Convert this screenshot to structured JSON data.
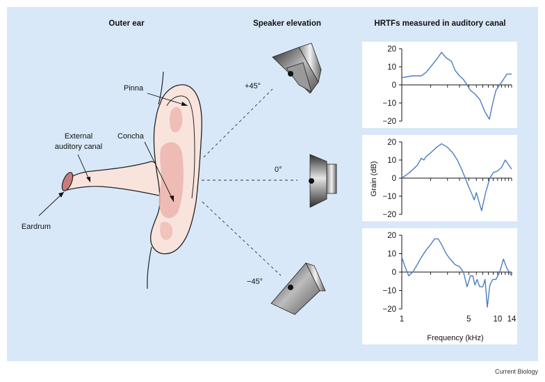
{
  "headers": {
    "outer_ear": "Outer ear",
    "speaker_elevation": "Speaker elevation",
    "hrtfs": "HRTFs measured in auditory canal"
  },
  "ear_labels": {
    "pinna": "Pinna",
    "external_canal_line1": "External",
    "external_canal_line2": "auditory canal",
    "concha": "Concha",
    "eardrum": "Eardrum"
  },
  "elevations": {
    "top": "+45°",
    "middle": "0°",
    "bottom": "−45°"
  },
  "axes": {
    "ylabel": "Grain (dB)",
    "xlabel": "Frequency (kHz)",
    "y_ticks": [
      "20",
      "10",
      "0",
      "−10",
      "−20"
    ],
    "x_ticks": [
      "1",
      "5",
      "10",
      "14"
    ]
  },
  "credit": "Current Biology",
  "colors": {
    "panel_bg": "#d8e8f8",
    "curve": "#4a7dbf",
    "ear_skin": "#f9e4dd",
    "ear_shade": "#ecb5ae"
  },
  "chart_data": [
    {
      "type": "line",
      "elevation": "+45°",
      "xscale": "log",
      "xlim": [
        1,
        14
      ],
      "ylim": [
        -20,
        20
      ],
      "ylabel": "Grain (dB)",
      "x": [
        1.0,
        1.3,
        1.6,
        1.8,
        2.0,
        2.3,
        2.6,
        2.9,
        3.3,
        3.6,
        4.0,
        4.4,
        4.8,
        5.2,
        5.8,
        6.5,
        7.4,
        8.2,
        8.9,
        9.6,
        10.5,
        11.5,
        12.5,
        14.0
      ],
      "y": [
        4,
        5,
        5,
        7,
        10,
        14,
        18,
        15,
        13,
        8,
        5,
        3,
        0,
        -3,
        -5,
        -8,
        -15,
        -19,
        -10,
        -3,
        0,
        3,
        6,
        6
      ]
    },
    {
      "type": "line",
      "elevation": "0°",
      "xscale": "log",
      "xlim": [
        1,
        14
      ],
      "ylim": [
        -20,
        20
      ],
      "ylabel": "Grain (dB)",
      "x": [
        1.0,
        1.2,
        1.45,
        1.6,
        1.7,
        1.8,
        2.0,
        2.3,
        2.6,
        3.0,
        3.4,
        3.8,
        4.2,
        4.6,
        5.0,
        5.4,
        5.7,
        6.0,
        6.3,
        6.8,
        7.5,
        8.3,
        9.0,
        10.0,
        11.0,
        12.0,
        14.0
      ],
      "y": [
        0,
        3,
        7,
        11,
        10,
        12,
        14,
        17,
        19,
        17,
        14,
        10,
        5,
        0,
        -5,
        -9,
        -12,
        -8,
        -12,
        -18,
        -8,
        0,
        3,
        4,
        6,
        10,
        5
      ]
    },
    {
      "type": "line",
      "elevation": "−45°",
      "xscale": "log",
      "xlim": [
        1,
        14
      ],
      "ylim": [
        -20,
        20
      ],
      "ylabel": "Grain (dB)",
      "xlabel": "Frequency (kHz)",
      "x": [
        1.0,
        1.08,
        1.18,
        1.3,
        1.45,
        1.6,
        1.8,
        2.0,
        2.2,
        2.4,
        2.6,
        2.9,
        3.2,
        3.6,
        4.0,
        4.4,
        4.8,
        5.2,
        5.5,
        5.8,
        6.1,
        6.5,
        7.0,
        7.4,
        7.8,
        8.3,
        8.9,
        9.6,
        10.5,
        11.5,
        12.5,
        14.0
      ],
      "y": [
        8,
        3,
        -2,
        0,
        4,
        8,
        12,
        15,
        18,
        18,
        15,
        10,
        7,
        4,
        3,
        0,
        -8,
        -2,
        -2,
        -7,
        -4,
        -8,
        -8,
        -4,
        -19,
        -7,
        -4,
        -4,
        0,
        7,
        2,
        -2
      ]
    }
  ]
}
